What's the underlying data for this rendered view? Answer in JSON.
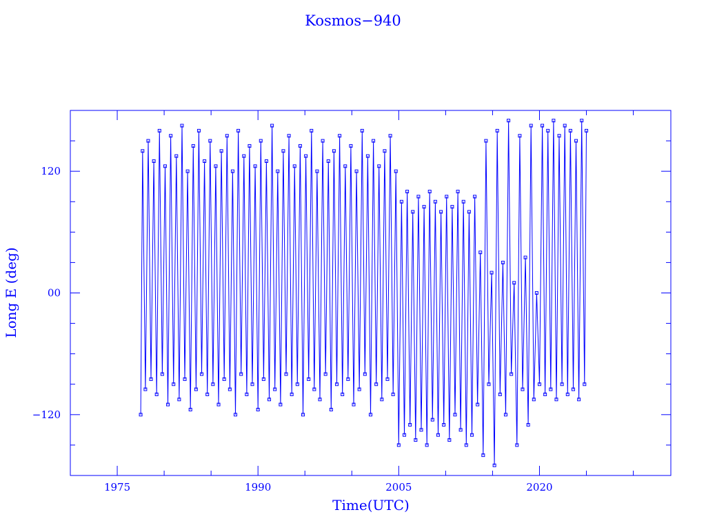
{
  "chart_data": {
    "type": "line",
    "title": "Kosmos−940",
    "xlabel": "Time(UTC)",
    "ylabel": "Long E (deg)",
    "xlim": [
      1970,
      2034
    ],
    "ylim": [
      -180,
      180
    ],
    "xticks": [
      1975,
      1990,
      2005,
      2020
    ],
    "xtick_labels": [
      "1975",
      "1990",
      "2005",
      "2020"
    ],
    "yticks": [
      -120,
      0,
      120
    ],
    "ytick_labels": [
      "−120",
      "00",
      "120"
    ],
    "color": "#0000ff",
    "grid": false,
    "marker": "square",
    "series": [
      {
        "note_free": true,
        "x": [
          1977.5,
          1977.7,
          1978.0,
          1978.3,
          1978.6,
          1978.9,
          1979.2,
          1979.5,
          1979.8,
          1980.1,
          1980.4,
          1980.7,
          1981.0,
          1981.3,
          1981.6,
          1981.9,
          1982.2,
          1982.5,
          1982.8,
          1983.1,
          1983.4,
          1983.7,
          1984.0,
          1984.3,
          1984.6,
          1984.9,
          1985.2,
          1985.5,
          1985.8,
          1986.1,
          1986.4,
          1986.7,
          1987.0,
          1987.3,
          1987.6,
          1987.9,
          1988.2,
          1988.5,
          1988.8,
          1989.1,
          1989.4,
          1989.7,
          1990.0,
          1990.3,
          1990.6,
          1990.9,
          1991.2,
          1991.5,
          1991.8,
          1992.1,
          1992.4,
          1992.7,
          1993.0,
          1993.3,
          1993.6,
          1993.9,
          1994.2,
          1994.5,
          1994.8,
          1995.1,
          1995.4,
          1995.7,
          1996.0,
          1996.3,
          1996.6,
          1996.9,
          1997.2,
          1997.5,
          1997.8,
          1998.1,
          1998.4,
          1998.7,
          1999.0,
          1999.3,
          1999.6,
          1999.9,
          2000.2,
          2000.5,
          2000.8,
          2001.1,
          2001.4,
          2001.7,
          2002.0,
          2002.3,
          2002.6,
          2002.9,
          2003.2,
          2003.5,
          2003.8,
          2004.1,
          2004.4,
          2004.7,
          2005.0,
          2005.3,
          2005.6,
          2005.9,
          2006.2,
          2006.5,
          2006.8,
          2007.1,
          2007.4,
          2007.7,
          2008.0,
          2008.3,
          2008.6,
          2008.9,
          2009.2,
          2009.5,
          2009.8,
          2010.1,
          2010.4,
          2010.7,
          2011.0,
          2011.3,
          2011.6,
          2011.9,
          2012.2,
          2012.5,
          2012.8,
          2013.1,
          2013.4,
          2013.7,
          2014.0,
          2014.3,
          2014.6,
          2014.9,
          2015.2,
          2015.5,
          2015.8,
          2016.1,
          2016.4,
          2016.7,
          2017.0,
          2017.3,
          2017.6,
          2017.9,
          2018.2,
          2018.5,
          2018.8,
          2019.1,
          2019.4,
          2019.7,
          2020.0,
          2020.3,
          2020.6,
          2020.9,
          2021.2,
          2021.5,
          2021.8,
          2022.1,
          2022.4,
          2022.7,
          2023.0,
          2023.3,
          2023.6,
          2023.9,
          2024.2,
          2024.5,
          2024.8,
          2025.0
        ],
        "y": [
          -120,
          140,
          -95,
          150,
          -85,
          130,
          -100,
          160,
          -80,
          125,
          -110,
          155,
          -90,
          135,
          -105,
          165,
          -85,
          120,
          -115,
          145,
          -95,
          160,
          -80,
          130,
          -100,
          150,
          -90,
          125,
          -110,
          140,
          -85,
          155,
          -95,
          120,
          -120,
          160,
          -80,
          135,
          -100,
          145,
          -90,
          125,
          -115,
          150,
          -85,
          130,
          -105,
          165,
          -95,
          120,
          -110,
          140,
          -80,
          155,
          -100,
          125,
          -90,
          145,
          -120,
          135,
          -85,
          160,
          -95,
          120,
          -105,
          150,
          -80,
          130,
          -115,
          140,
          -90,
          155,
          -100,
          125,
          -85,
          145,
          -110,
          120,
          -95,
          160,
          -80,
          135,
          -120,
          150,
          -90,
          125,
          -105,
          140,
          -85,
          155,
          -100,
          120,
          -150,
          90,
          -140,
          100,
          -130,
          80,
          -145,
          95,
          -135,
          85,
          -150,
          100,
          -125,
          90,
          -140,
          80,
          -130,
          95,
          -145,
          85,
          -120,
          100,
          -135,
          90,
          -150,
          80,
          -140,
          95,
          -110,
          40,
          -160,
          150,
          -90,
          20,
          -170,
          160,
          -100,
          30,
          -120,
          170,
          -80,
          10,
          -150,
          155,
          -95,
          35,
          -130,
          165,
          -105,
          0,
          -90,
          165,
          -100,
          160,
          -95,
          170,
          -105,
          155,
          -90,
          165,
          -100,
          160,
          -95,
          150,
          -105,
          170,
          -90,
          160
        ]
      }
    ]
  }
}
